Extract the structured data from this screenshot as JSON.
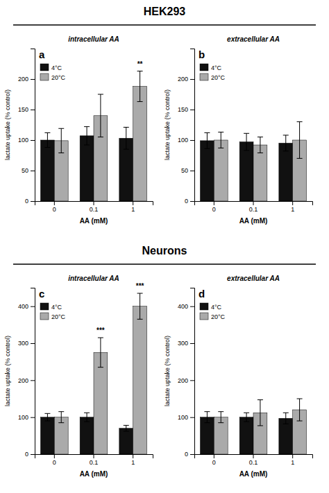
{
  "chart_data": [
    {
      "type": "bar",
      "title": "HEK293",
      "subtitle": "intracellular AA",
      "xlabel": "AA (mM)",
      "ylabel": "lactate uptake (% control)",
      "categories": [
        "0",
        "0.1",
        "1"
      ],
      "series": [
        {
          "name": "4°C",
          "color": "#111111",
          "values": [
            100,
            107,
            103
          ],
          "errors": [
            12,
            15,
            18
          ]
        },
        {
          "name": "20°C",
          "color": "#aaaaaa",
          "values": [
            99,
            140,
            188
          ],
          "errors": [
            20,
            35,
            25
          ]
        }
      ],
      "ylim": [
        0,
        250
      ],
      "yticks": [
        0,
        50,
        100,
        150,
        200
      ],
      "grid": false,
      "legend": "upper left",
      "annotations": [
        {
          "text": "a"
        },
        {
          "text": "**",
          "x": "1",
          "series": "20°C"
        }
      ]
    },
    {
      "type": "bar",
      "subtitle": "extracellular AA",
      "xlabel": "AA (mM)",
      "ylabel": "lactate uptake (% control)",
      "categories": [
        "0",
        "0.1",
        "1"
      ],
      "series": [
        {
          "name": "4°C",
          "color": "#111111",
          "values": [
            99,
            97,
            95
          ],
          "errors": [
            13,
            14,
            13
          ]
        },
        {
          "name": "20°C",
          "color": "#aaaaaa",
          "values": [
            100,
            92,
            100
          ],
          "errors": [
            13,
            13,
            30
          ]
        }
      ],
      "ylim": [
        0,
        250
      ],
      "yticks": [
        0,
        50,
        100,
        150,
        200
      ],
      "grid": false,
      "legend": "upper left",
      "annotations": [
        {
          "text": "b"
        }
      ]
    },
    {
      "type": "bar",
      "title": "Neurons",
      "subtitle": "intracellular AA",
      "xlabel": "AA (mM)",
      "ylabel": "lactate uptake (% control)",
      "categories": [
        "0",
        "0.1",
        "1"
      ],
      "series": [
        {
          "name": "4°C",
          "color": "#111111",
          "values": [
            100,
            100,
            70
          ],
          "errors": [
            10,
            12,
            8
          ]
        },
        {
          "name": "20°C",
          "color": "#aaaaaa",
          "values": [
            100,
            275,
            400
          ],
          "errors": [
            15,
            40,
            35
          ]
        }
      ],
      "ylim": [
        0,
        450
      ],
      "yticks": [
        0,
        100,
        200,
        300,
        400
      ],
      "grid": false,
      "legend": "upper left",
      "annotations": [
        {
          "text": "c"
        },
        {
          "text": "***",
          "x": "0.1",
          "series": "20°C"
        },
        {
          "text": "***",
          "x": "1",
          "series": "20°C"
        }
      ]
    },
    {
      "type": "bar",
      "subtitle": "extracellular AA",
      "xlabel": "AA (mM)",
      "ylabel": "lactate uptake (% control)",
      "categories": [
        "0",
        "0.1",
        "1"
      ],
      "series": [
        {
          "name": "4°C",
          "color": "#111111",
          "values": [
            100,
            100,
            97
          ],
          "errors": [
            15,
            12,
            15
          ]
        },
        {
          "name": "20°C",
          "color": "#aaaaaa",
          "values": [
            100,
            112,
            120
          ],
          "errors": [
            15,
            35,
            30
          ]
        }
      ],
      "ylim": [
        0,
        450
      ],
      "yticks": [
        0,
        100,
        200,
        300,
        400
      ],
      "grid": false,
      "legend": "upper left",
      "annotations": [
        {
          "text": "d"
        }
      ]
    }
  ]
}
